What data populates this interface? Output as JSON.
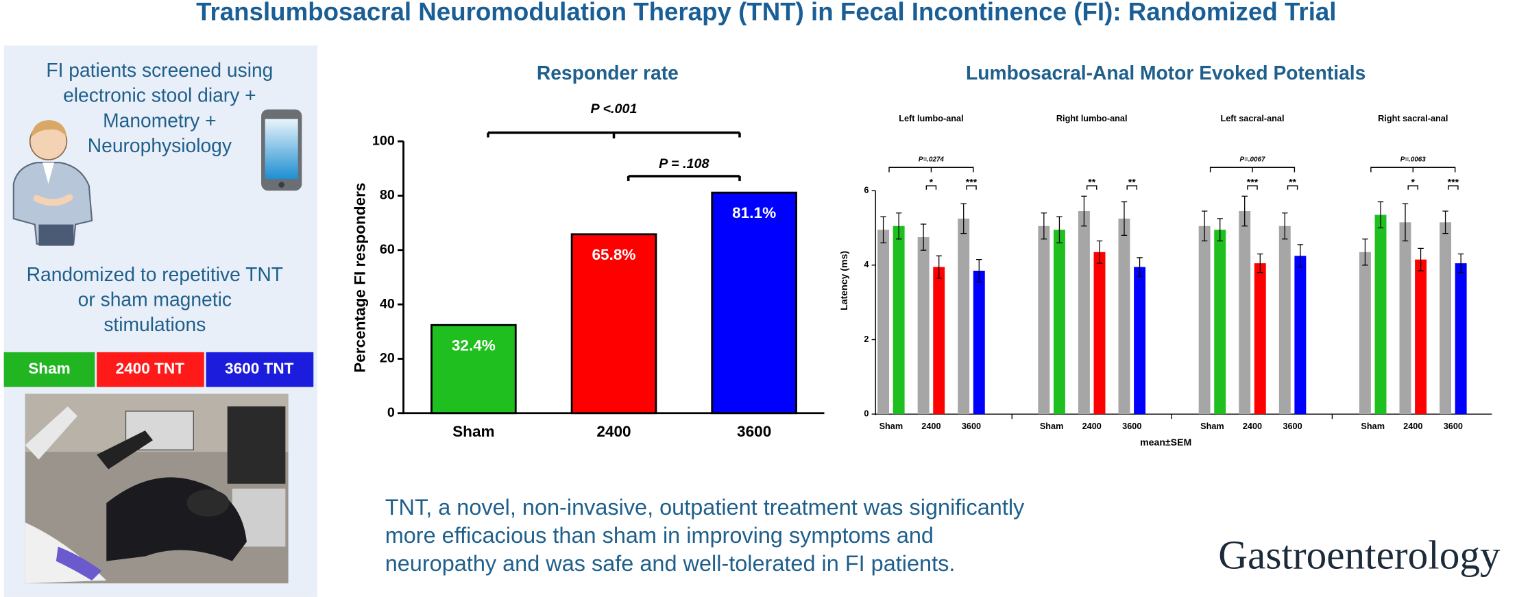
{
  "title": "Translumbosacral Neuromodulation Therapy (TNT) in Fecal Incontinence (FI): Randomized Trial",
  "screening": [
    "FI patients screened using",
    "electronic stool diary +",
    "Manometry +",
    "Neurophysiology"
  ],
  "randomized": [
    "Randomized to repetitive TNT",
    "or sham magnetic",
    "stimulations"
  ],
  "groups": [
    "Sham",
    "2400 TNT",
    "3600 TNT"
  ],
  "conclusion": [
    "TNT, a novel, non-invasive, outpatient treatment was significantly",
    "more efficacious than sham in improving symptoms and",
    "neuropathy and was safe and well-tolerated in FI patients."
  ],
  "journal": "Gastroenterology",
  "chart_data": [
    {
      "type": "bar",
      "title": "Responder rate",
      "ylabel": "Percentage FI responders",
      "categories": [
        "Sham",
        "2400",
        "3600"
      ],
      "values": [
        32.4,
        65.8,
        81.1
      ],
      "value_labels": [
        "32.4%",
        "65.8%",
        "81.1%"
      ],
      "colors": [
        "#1fbf1f",
        "#ff0000",
        "#0000ff"
      ],
      "ylim": [
        0,
        100
      ],
      "yticks": [
        0,
        20,
        40,
        60,
        80,
        100
      ],
      "annotations": [
        "P <.001",
        "P = .108"
      ]
    },
    {
      "type": "grouped-bar",
      "title": "Lumbosacral-Anal Motor Evoked Potentials",
      "ylabel": "Latency (ms)",
      "xlabel": "mean±SEM",
      "ylim": [
        0,
        6
      ],
      "yticks": [
        0,
        2,
        4,
        6
      ],
      "panels": [
        {
          "title": "Left lumbo-anal",
          "categories": [
            "Sham",
            "2400",
            "3600"
          ],
          "series": [
            {
              "color": "#a6a6a6",
              "values": [
                4.95,
                4.75,
                5.25
              ],
              "errors": [
                0.35,
                0.35,
                0.4
              ]
            },
            {
              "colors": [
                "#1fbf1f",
                "#ff0000",
                "#0000ff"
              ],
              "values": [
                5.05,
                3.95,
                3.85
              ],
              "errors": [
                0.35,
                0.3,
                0.3
              ]
            }
          ],
          "p_label": "P=.0274",
          "stars": [
            null,
            "*",
            "***"
          ]
        },
        {
          "title": "Right lumbo-anal",
          "categories": [
            "Sham",
            "2400",
            "3600"
          ],
          "series": [
            {
              "color": "#a6a6a6",
              "values": [
                5.05,
                5.45,
                5.25
              ],
              "errors": [
                0.35,
                0.4,
                0.45
              ]
            },
            {
              "colors": [
                "#1fbf1f",
                "#ff0000",
                "#0000ff"
              ],
              "values": [
                4.95,
                4.35,
                3.95
              ],
              "errors": [
                0.35,
                0.3,
                0.25
              ]
            }
          ],
          "p_label": null,
          "stars": [
            null,
            "**",
            "**"
          ]
        },
        {
          "title": "Left sacral-anal",
          "categories": [
            "Sham",
            "2400",
            "3600"
          ],
          "series": [
            {
              "color": "#a6a6a6",
              "values": [
                5.05,
                5.45,
                5.05
              ],
              "errors": [
                0.4,
                0.4,
                0.35
              ]
            },
            {
              "colors": [
                "#1fbf1f",
                "#ff0000",
                "#0000ff"
              ],
              "values": [
                4.95,
                4.05,
                4.25
              ],
              "errors": [
                0.3,
                0.25,
                0.3
              ]
            }
          ],
          "p_label": "P=.0067",
          "stars": [
            null,
            "***",
            "**"
          ]
        },
        {
          "title": "Right sacral-anal",
          "categories": [
            "Sham",
            "2400",
            "3600"
          ],
          "series": [
            {
              "color": "#a6a6a6",
              "values": [
                4.35,
                5.15,
                5.15
              ],
              "errors": [
                0.35,
                0.5,
                0.3
              ]
            },
            {
              "colors": [
                "#1fbf1f",
                "#ff0000",
                "#0000ff"
              ],
              "values": [
                5.35,
                4.15,
                4.05
              ],
              "errors": [
                0.35,
                0.3,
                0.25
              ]
            }
          ],
          "p_label": "P=.0063",
          "stars": [
            null,
            "*",
            "***"
          ]
        }
      ]
    }
  ]
}
